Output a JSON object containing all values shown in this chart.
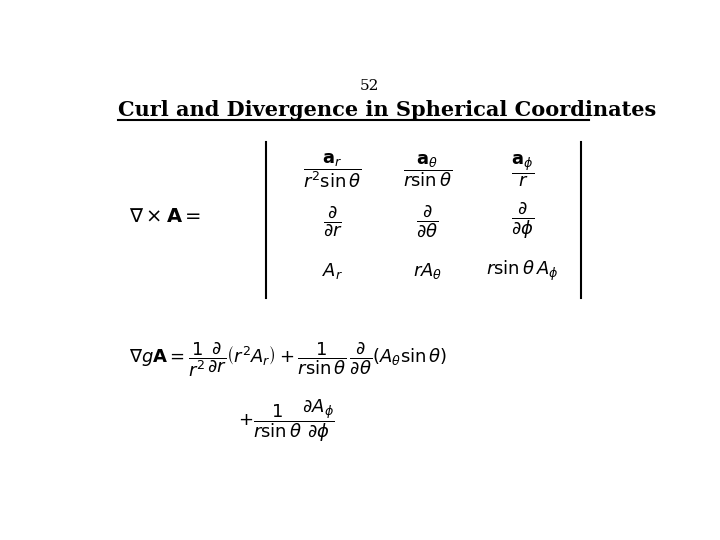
{
  "page_number": "52",
  "title": "Curl and Divergence in Spherical Coordinates",
  "background_color": "#ffffff",
  "text_color": "#000000",
  "figsize": [
    7.2,
    5.4
  ],
  "dpi": 100
}
